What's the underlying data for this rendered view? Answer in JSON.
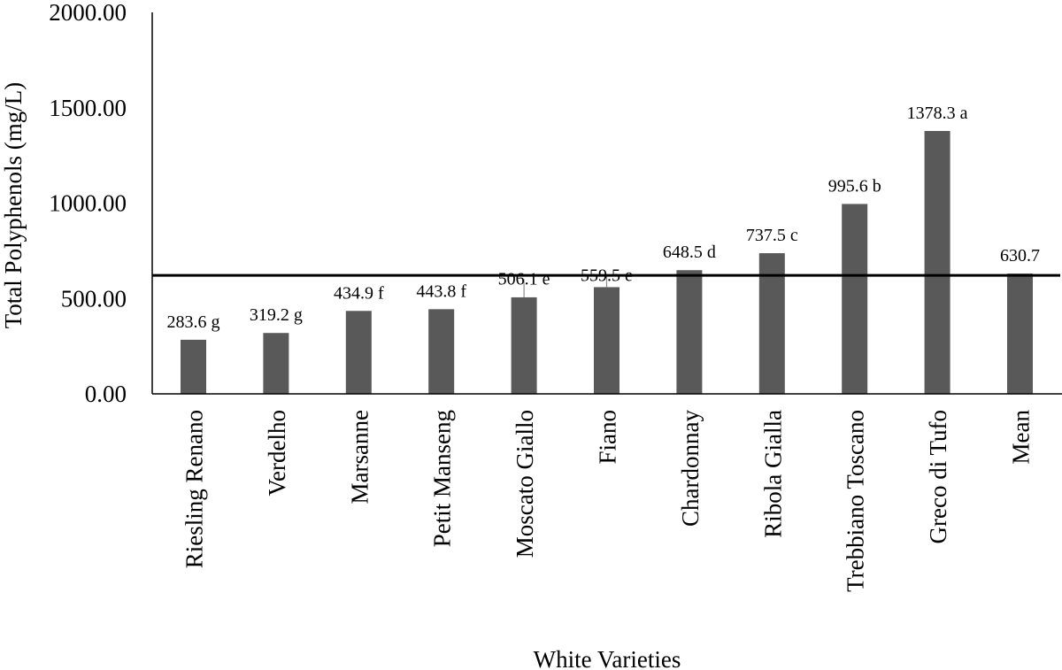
{
  "chart_data": {
    "type": "bar",
    "categories": [
      "Riesling Renano",
      "Verdelho",
      "Marsanne",
      "Petit Manseng",
      "Moscato Giallo",
      "Fiano",
      "Chardonnay",
      "Ribola Gialla",
      "Trebbiano Toscano",
      "Greco di Tufo",
      "Mean"
    ],
    "values": [
      283.6,
      319.2,
      434.9,
      443.8,
      506.1,
      559.5,
      648.5,
      737.5,
      995.6,
      1378.3,
      630.7
    ],
    "data_labels": [
      "283.6 g",
      "319.2 g",
      "434.9 f",
      "443.8 f",
      "506.1 e",
      "559.5 e",
      "648.5 d",
      "737.5 c",
      "995.6 b",
      "1378.3 a",
      "630.7"
    ],
    "error": [
      0,
      0,
      0,
      0,
      95,
      60,
      0,
      0,
      0,
      0,
      0
    ],
    "mean_line": 630.7,
    "title": "",
    "xlabel": "White Varieties",
    "ylabel": "Total Polyphenols (mg/L)",
    "ylim": [
      0,
      2000
    ],
    "yticks": [
      "0.00",
      "500.00",
      "1000.00",
      "1500.00",
      "2000.00"
    ],
    "grid": false,
    "colors": {
      "bar": "#595959",
      "mean_line": "#000000",
      "error": "#8c8c8c"
    }
  }
}
